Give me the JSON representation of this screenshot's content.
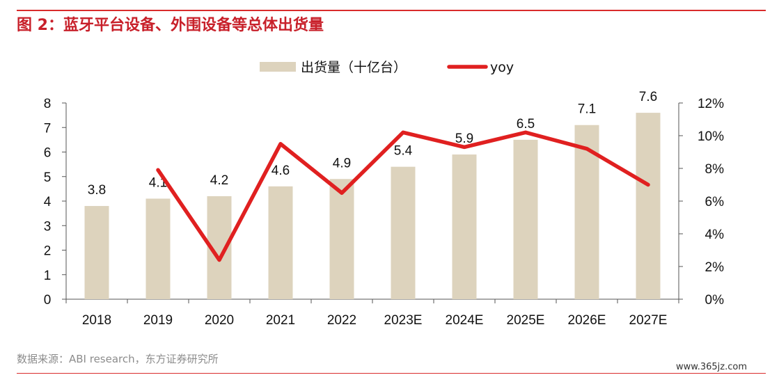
{
  "header": {
    "title": "图 2：蓝牙平台设备、外围设备等总体出货量"
  },
  "footer": {
    "source": "数据来源：ABI research，东方证券研究所",
    "watermark": "www.365jz.com"
  },
  "colors": {
    "bar": "#ddd3bd",
    "line": "#e02020",
    "title": "#c8202a",
    "rule": "#d92b2b"
  },
  "chart_data": {
    "type": "bar",
    "categories": [
      "2018",
      "2019",
      "2020",
      "2021",
      "2022",
      "2023E",
      "2024E",
      "2025E",
      "2026E",
      "2027E"
    ],
    "series": [
      {
        "name": "出货量（十亿台）",
        "type": "bar",
        "axis": "left",
        "values": [
          3.8,
          4.1,
          4.2,
          4.6,
          4.9,
          5.4,
          5.9,
          6.5,
          7.1,
          7.6
        ]
      },
      {
        "name": "yoy",
        "type": "line",
        "axis": "right",
        "values": [
          null,
          7.9,
          2.4,
          9.5,
          6.5,
          10.2,
          9.3,
          10.2,
          9.2,
          7.0
        ]
      }
    ],
    "y_left": {
      "min": 0,
      "max": 8,
      "ticks": [
        "0",
        "1",
        "2",
        "3",
        "4",
        "5",
        "6",
        "7",
        "8"
      ]
    },
    "y_right": {
      "min": 0,
      "max": 12,
      "ticks": [
        "0%",
        "2%",
        "4%",
        "6%",
        "8%",
        "10%",
        "12%"
      ]
    },
    "legend_position": "top-center",
    "grid": false
  }
}
